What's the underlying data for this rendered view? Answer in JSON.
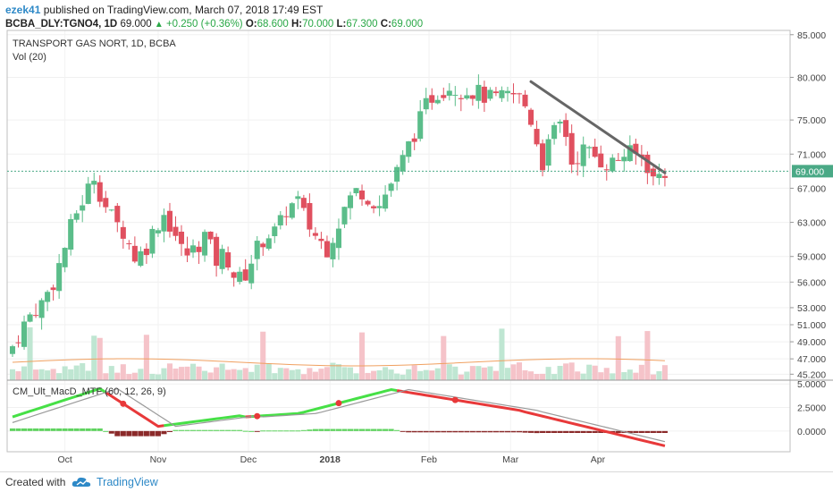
{
  "header": {
    "user": "ezek41",
    "published": "published on TradingView.com, March 07, 2018 17:49 EST",
    "symbol": "BCBA_DLY:TGNO4, 1D",
    "last": "69.000",
    "change": "+0.250 (+0.36%)",
    "o_label": "O:",
    "o_value": "68.600",
    "h_label": "H:",
    "h_value": "70.000",
    "l_label": "L:",
    "l_value": "67.300",
    "c_label": "C:",
    "c_value": "69.000"
  },
  "footer": {
    "created_with": "Created with",
    "brand": "TradingView"
  },
  "colors": {
    "up": "#5bbd8a",
    "down": "#e0505f",
    "macd_fast": "#46e046",
    "macd_slow": "#e8393a",
    "signal": "#9a9a9a",
    "trend": "#666666",
    "price_line": "#4aa986",
    "brand": "#2e89c7"
  },
  "chart_data": {
    "type": "candlestick",
    "title": "TRANSPORT GAS NORT, 1D, BCBA",
    "volume_label": "Vol (20)",
    "macd_label": "CM_Ult_MacD_MTF (60, 12, 26, 9)",
    "price_ticks": [
      "85.000",
      "80.000",
      "75.000",
      "71.000",
      "67.000",
      "63.000",
      "59.000",
      "56.000",
      "53.000",
      "51.000",
      "49.000",
      "47.000",
      "45.200"
    ],
    "macd_ticks": [
      "5.0000",
      "2.5000",
      "0.0000"
    ],
    "x_ticks": [
      "Oct",
      "Nov",
      "Dec",
      "2018",
      "Feb",
      "Mar",
      "Apr"
    ],
    "last_price_label": "69.000",
    "y_range": [
      44.5,
      85.5
    ],
    "macd_range": [
      -2.2,
      5.4
    ],
    "price_series": [
      [
        0,
        48.5
      ],
      [
        3,
        50.5
      ],
      [
        7,
        52.6
      ],
      [
        10,
        53.5
      ],
      [
        14,
        56
      ],
      [
        17,
        59
      ],
      [
        21,
        63.5
      ],
      [
        24,
        65.5
      ],
      [
        28,
        68.5
      ],
      [
        31,
        65.5
      ],
      [
        35,
        63
      ],
      [
        38,
        62
      ],
      [
        42,
        59
      ],
      [
        45,
        59.5
      ],
      [
        49,
        62.5
      ],
      [
        52,
        64
      ],
      [
        56,
        61.5
      ],
      [
        59,
        59
      ],
      [
        63,
        60
      ],
      [
        66,
        61.5
      ],
      [
        70,
        58.5
      ],
      [
        73,
        59.5
      ],
      [
        77,
        56
      ],
      [
        80,
        57
      ],
      [
        84,
        60
      ],
      [
        87,
        61.5
      ],
      [
        91,
        62
      ],
      [
        94,
        64.5
      ],
      [
        98,
        65.5
      ],
      [
        101,
        63
      ],
      [
        105,
        61
      ],
      [
        108,
        60
      ],
      [
        112,
        63
      ],
      [
        115,
        65.5
      ],
      [
        119,
        67
      ],
      [
        122,
        66
      ],
      [
        126,
        65
      ],
      [
        129,
        67
      ],
      [
        133,
        69.5
      ],
      [
        136,
        72
      ],
      [
        140,
        75
      ],
      [
        143,
        77.5
      ],
      [
        147,
        78.5
      ],
      [
        150,
        79
      ],
      [
        154,
        78.5
      ],
      [
        157,
        78.5
      ],
      [
        161,
        78
      ],
      [
        164,
        77.5
      ],
      [
        168,
        77.5
      ],
      [
        171,
        78
      ],
      [
        175,
        77.5
      ],
      [
        178,
        75
      ],
      [
        182,
        70
      ],
      [
        185,
        73
      ],
      [
        189,
        75
      ],
      [
        192,
        70
      ],
      [
        196,
        71.5
      ],
      [
        199,
        71
      ],
      [
        203,
        70
      ],
      [
        206,
        70
      ],
      [
        210,
        71
      ],
      [
        213,
        71
      ],
      [
        217,
        70.5
      ],
      [
        220,
        68
      ],
      [
        224,
        69
      ]
    ],
    "trendline": [
      [
        178,
        79.5
      ],
      [
        224,
        68.8
      ]
    ],
    "x_tick_days": [
      18,
      50,
      81,
      109,
      143,
      171,
      201
    ]
  }
}
